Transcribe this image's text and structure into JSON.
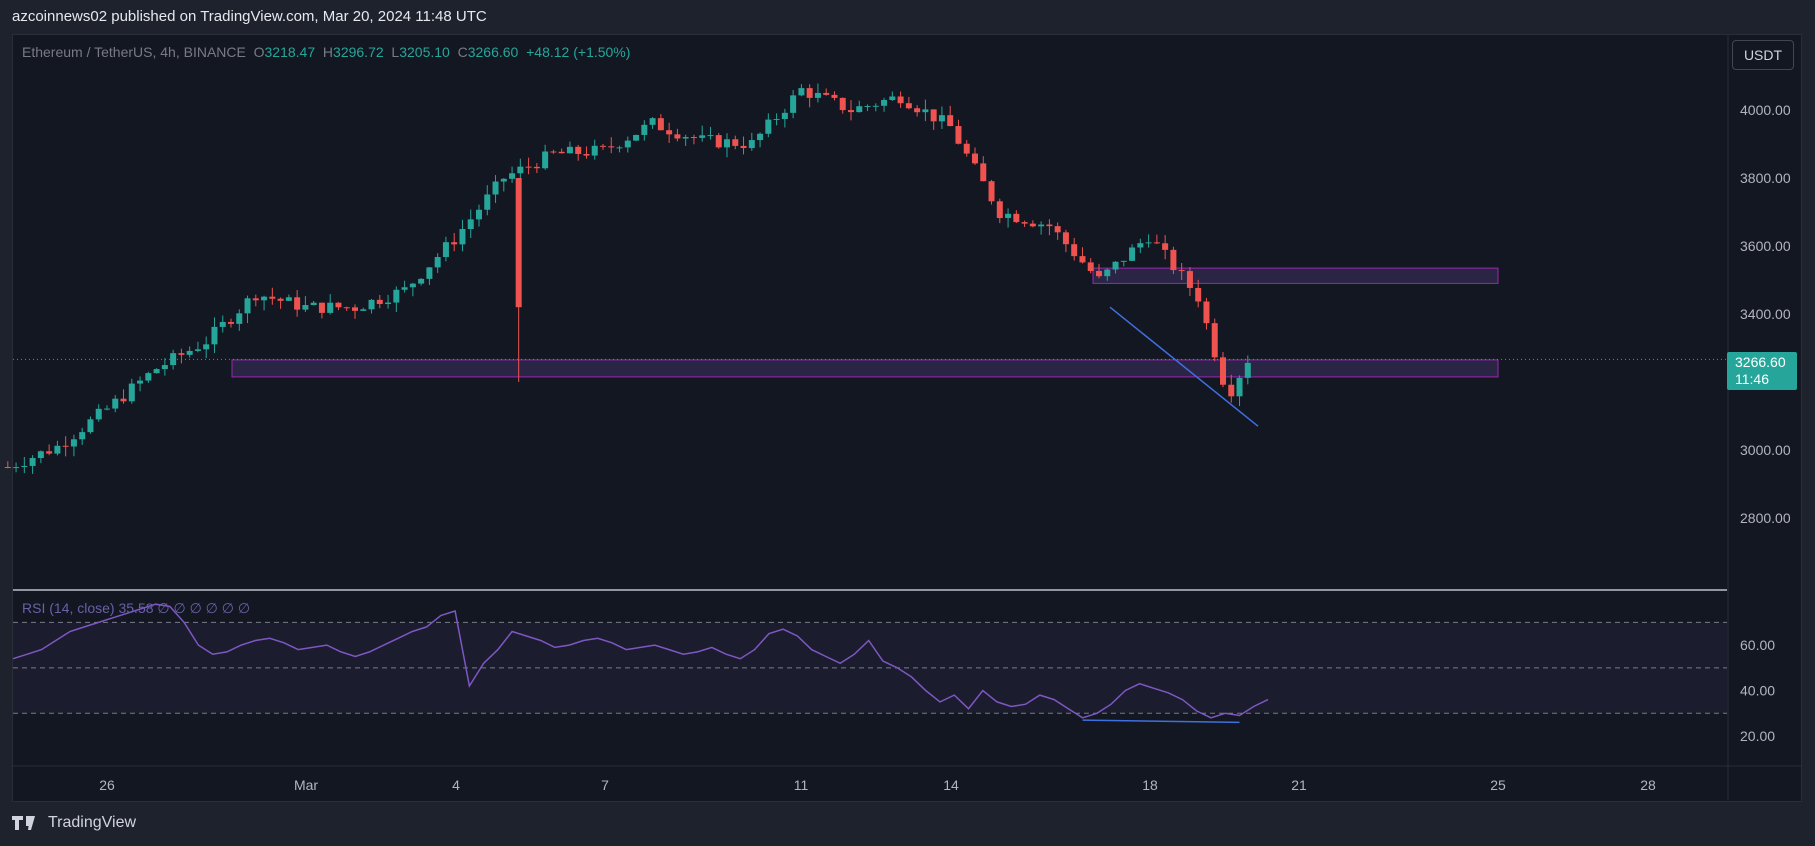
{
  "header": {
    "publish_text": "azcoinnews02 published on TradingView.com, Mar 20, 2024 11:48 UTC"
  },
  "legend": {
    "symbol": "Ethereum / TetherUS, 4h, BINANCE",
    "open_label": "O",
    "open": "3218.47",
    "high_label": "H",
    "high": "3296.72",
    "low_label": "L",
    "low": "3205.10",
    "close_label": "C",
    "close": "3266.60",
    "change": "+48.12 (+1.50%)"
  },
  "rsi_legend": "RSI (14, close) 35.58 ∅ ∅ ∅ ∅ ∅ ∅",
  "unit_button": "USDT",
  "last_price": {
    "price": "3266.60",
    "countdown": "11:46"
  },
  "footer": {
    "brand": "TradingView",
    "logo_icon": "tradingview-logo-icon"
  },
  "colors": {
    "up": "#26a69a",
    "down": "#ef5350",
    "zone": "#7e57c2",
    "trendline": "#3f6fe0",
    "rsi": "#7e57c2",
    "background": "#131722"
  },
  "chart_data": [
    {
      "type": "candlestick",
      "title": "Ethereum / TetherUS, 4h, BINANCE",
      "y_axis_ticks": [
        4000,
        3800,
        3600,
        3400,
        3000,
        2800
      ],
      "y_axis_tick_labels": [
        "4000.00",
        "3800.00",
        "3600.00",
        "3400.00",
        "3000.00",
        "2800.00"
      ],
      "y_axis_unit": "USDT",
      "x_axis_tick_labels": [
        "26",
        "Mar",
        "4",
        "7",
        "11",
        "14",
        "18",
        "21",
        "25",
        "28"
      ],
      "last_price": 3266.6,
      "ohlc_keyframes": [
        {
          "date": "Feb 24",
          "price": 2950
        },
        {
          "date": "Feb 25",
          "price": 3010
        },
        {
          "date": "Feb 26",
          "price": 3120
        },
        {
          "date": "Feb 27",
          "price": 3240
        },
        {
          "date": "Feb 28",
          "price": 3320
        },
        {
          "date": "Feb 29",
          "price": 3460
        },
        {
          "date": "Mar 1",
          "price": 3420
        },
        {
          "date": "Mar 2",
          "price": 3420
        },
        {
          "date": "Mar 3",
          "price": 3470
        },
        {
          "date": "Mar 4",
          "price": 3620
        },
        {
          "date": "Mar 5",
          "price": 3800
        },
        {
          "date": "Mar 5 (wick low)",
          "price": 3200
        },
        {
          "date": "Mar 6",
          "price": 3870
        },
        {
          "date": "Mar 7",
          "price": 3880
        },
        {
          "date": "Mar 8",
          "price": 3960
        },
        {
          "date": "Mar 9",
          "price": 3910
        },
        {
          "date": "Mar 10",
          "price": 3900
        },
        {
          "date": "Mar 11",
          "price": 4060
        },
        {
          "date": "Mar 12",
          "price": 4000
        },
        {
          "date": "Mar 13",
          "price": 4040
        },
        {
          "date": "Mar 14",
          "price": 3950
        },
        {
          "date": "Mar 15",
          "price": 3700
        },
        {
          "date": "Mar 16",
          "price": 3660
        },
        {
          "date": "Mar 17",
          "price": 3500
        },
        {
          "date": "Mar 18",
          "price": 3630
        },
        {
          "date": "Mar 19",
          "price": 3450
        },
        {
          "date": "Mar 19 (late)",
          "price": 3160
        },
        {
          "date": "Mar 20",
          "price": 3266.6
        }
      ],
      "zones": [
        {
          "from_date": "Mar 17",
          "to_date": "Mar 25",
          "low": 3490,
          "high": 3535
        },
        {
          "from_date": "Feb 29",
          "to_date": "Mar 25",
          "low": 3215,
          "high": 3265
        }
      ],
      "trendline": {
        "from": {
          "date": "Mar 17",
          "price": 3420
        },
        "to": {
          "date": "Mar 20",
          "price": 3070
        }
      }
    },
    {
      "type": "line",
      "title": "RSI (14, close)",
      "current_value": 35.58,
      "y_axis_tick_labels": [
        "60.00",
        "40.00",
        "20.00"
      ],
      "bands": [
        70,
        50,
        30
      ],
      "series": [
        {
          "values": [
            54,
            56,
            58,
            62,
            66,
            68,
            70,
            72,
            74,
            76,
            78,
            77,
            70,
            60,
            56,
            57,
            60,
            62,
            63,
            61,
            58,
            59,
            60,
            57,
            55,
            57,
            60,
            63,
            66,
            68,
            73,
            75,
            42,
            52,
            58,
            66,
            64,
            62,
            59,
            60,
            62,
            63,
            61,
            58,
            59,
            60,
            58,
            56,
            57,
            59,
            56,
            54,
            58,
            65,
            67,
            64,
            58,
            55,
            52,
            56,
            62,
            53,
            50,
            46,
            40,
            35,
            38,
            32,
            40,
            35,
            33,
            34,
            38,
            36,
            32,
            28,
            30,
            34,
            40,
            43,
            41,
            39,
            36,
            31,
            28,
            30,
            29,
            33,
            36
          ],
          "divergence_line": {
            "from_index": 75,
            "to_index": 86,
            "from_value": 27,
            "to_value": 26
          }
        }
      ]
    }
  ]
}
